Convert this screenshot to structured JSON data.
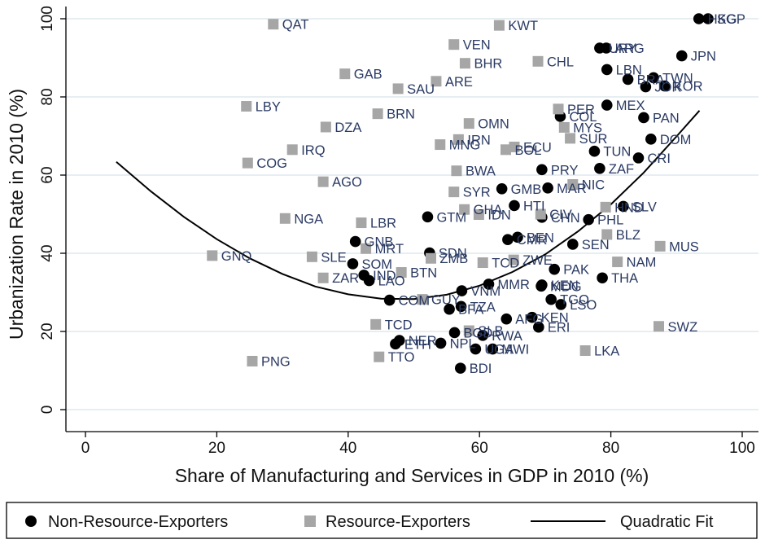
{
  "chart_data": {
    "type": "scatter",
    "title": "",
    "xlabel": "Share of Manufacturing and Services in GDP in 2010 (%)",
    "ylabel": "Urbanization Rate in 2010 (%)",
    "xlim": [
      0,
      100
    ],
    "ylim": [
      0,
      100
    ],
    "xticks": [
      0,
      20,
      40,
      60,
      80,
      100
    ],
    "yticks": [
      0,
      20,
      40,
      60,
      80,
      100
    ],
    "grid": "horizontal",
    "legend": {
      "placement": "bottom",
      "items": [
        {
          "label": "Non-Resource-Exporters",
          "marker": "circle",
          "color": "#000000"
        },
        {
          "label": "Resource-Exporters",
          "marker": "square",
          "color": "#a6a6a6"
        },
        {
          "label": "Quadratic Fit",
          "marker": "line",
          "color": "#000000"
        }
      ]
    },
    "series": [
      {
        "name": "Non-Resource-Exporters",
        "marker": "circle",
        "color": "#000000",
        "points": [
          {
            "label": "HKG",
            "x": 93.4,
            "y": 100
          },
          {
            "label": "SGP",
            "x": 94.8,
            "y": 100
          },
          {
            "label": "URY",
            "x": 78.3,
            "y": 92.5
          },
          {
            "label": "ARG",
            "x": 79.3,
            "y": 92.5
          },
          {
            "label": "JPN",
            "x": 90.8,
            "y": 90.5
          },
          {
            "label": "LBN",
            "x": 79.4,
            "y": 87
          },
          {
            "label": "BRA",
            "x": 82.6,
            "y": 84.5
          },
          {
            "label": "TWN",
            "x": 86.5,
            "y": 84.9
          },
          {
            "label": "JOR",
            "x": 85.3,
            "y": 82.6
          },
          {
            "label": "KOR",
            "x": 88.2,
            "y": 82.8
          },
          {
            "label": "MEX",
            "x": 79.4,
            "y": 77.9
          },
          {
            "label": "PAN",
            "x": 85,
            "y": 74.7
          },
          {
            "label": "COL",
            "x": 72.3,
            "y": 75
          },
          {
            "label": "DOM",
            "x": 86.1,
            "y": 69.2
          },
          {
            "label": "TUN",
            "x": 77.5,
            "y": 66.1
          },
          {
            "label": "CRI",
            "x": 84.2,
            "y": 64.4
          },
          {
            "label": "ZAF",
            "x": 78.3,
            "y": 61.7
          },
          {
            "label": "PRY",
            "x": 69.5,
            "y": 61.4
          },
          {
            "label": "GMB",
            "x": 63.4,
            "y": 56.5
          },
          {
            "label": "MAR",
            "x": 70.4,
            "y": 56.7
          },
          {
            "label": "HTI",
            "x": 65.3,
            "y": 52.2
          },
          {
            "label": "SLV",
            "x": 81.9,
            "y": 52
          },
          {
            "label": "GTM",
            "x": 52.1,
            "y": 49.3
          },
          {
            "label": "CHN",
            "x": 69.5,
            "y": 49.2
          },
          {
            "label": "PHL",
            "x": 76.6,
            "y": 48.6
          },
          {
            "label": "BEN",
            "x": 65.8,
            "y": 44.1
          },
          {
            "label": "CMR",
            "x": 64.3,
            "y": 43.5
          },
          {
            "label": "GNB",
            "x": 41.1,
            "y": 43
          },
          {
            "label": "SEN",
            "x": 74.2,
            "y": 42.3
          },
          {
            "label": "SDN",
            "x": 52.4,
            "y": 40.1
          },
          {
            "label": "SOM",
            "x": 40.7,
            "y": 37.3
          },
          {
            "label": "PAK",
            "x": 71.4,
            "y": 35.9
          },
          {
            "label": "IND",
            "x": 42.4,
            "y": 34.4
          },
          {
            "label": "LAO",
            "x": 43.2,
            "y": 33
          },
          {
            "label": "THA",
            "x": 78.7,
            "y": 33.7
          },
          {
            "label": "MMR",
            "x": 61.4,
            "y": 32.1
          },
          {
            "label": "KEN",
            "x": 69.5,
            "y": 31.9
          },
          {
            "label": "MDG",
            "x": 69.4,
            "y": 31.6
          },
          {
            "label": "VNM",
            "x": 57.3,
            "y": 30.4
          },
          {
            "label": "COM",
            "x": 46.3,
            "y": 28
          },
          {
            "label": "TGO",
            "x": 70.9,
            "y": 28.2
          },
          {
            "label": "LSO",
            "x": 72.4,
            "y": 26.9
          },
          {
            "label": "TZA",
            "x": 57.2,
            "y": 26.4
          },
          {
            "label": "BFA",
            "x": 55.4,
            "y": 25.7
          },
          {
            "label": "AFG",
            "x": 64.1,
            "y": 23.2
          },
          {
            "label": "KEN2",
            "x": 68,
            "y": 23.6
          },
          {
            "label": "ERI",
            "x": 69,
            "y": 21.1
          },
          {
            "label": "NER",
            "x": 47.8,
            "y": 17.7
          },
          {
            "label": "ETH",
            "x": 47.2,
            "y": 16.8
          },
          {
            "label": "NPL",
            "x": 54.1,
            "y": 17
          },
          {
            "label": "UGA",
            "x": 59.4,
            "y": 15.5
          },
          {
            "label": "MWI",
            "x": 62,
            "y": 15.5
          },
          {
            "label": "RWA",
            "x": 60.5,
            "y": 19
          },
          {
            "label": "BGD",
            "x": 56.2,
            "y": 19.7
          },
          {
            "label": "BDI",
            "x": 57.1,
            "y": 10.6
          }
        ]
      },
      {
        "name": "Resource-Exporters",
        "marker": "square",
        "color": "#a6a6a6",
        "points": [
          {
            "label": "QAT",
            "x": 28.6,
            "y": 98.6
          },
          {
            "label": "KWT",
            "x": 63,
            "y": 98.3
          },
          {
            "label": "VEN",
            "x": 56.1,
            "y": 93.4
          },
          {
            "label": "BHR",
            "x": 57.8,
            "y": 88.6
          },
          {
            "label": "CHL",
            "x": 68.9,
            "y": 89.1
          },
          {
            "label": "GAB",
            "x": 39.5,
            "y": 85.9
          },
          {
            "label": "ARE",
            "x": 53.4,
            "y": 84
          },
          {
            "label": "SAU",
            "x": 47.6,
            "y": 82.1
          },
          {
            "label": "LBY",
            "x": 24.5,
            "y": 77.6
          },
          {
            "label": "PER",
            "x": 72,
            "y": 76.9
          },
          {
            "label": "BRN",
            "x": 44.5,
            "y": 75.7
          },
          {
            "label": "OMN",
            "x": 58.4,
            "y": 73.2
          },
          {
            "label": "MYS",
            "x": 72.9,
            "y": 72.2
          },
          {
            "label": "DZA",
            "x": 36.6,
            "y": 72.3
          },
          {
            "label": "SUR",
            "x": 73.8,
            "y": 69.4
          },
          {
            "label": "IRN",
            "x": 56.8,
            "y": 69.1
          },
          {
            "label": "MNG",
            "x": 54,
            "y": 67.8
          },
          {
            "label": "ECU",
            "x": 65.3,
            "y": 67.2
          },
          {
            "label": "BOL",
            "x": 64,
            "y": 66.5
          },
          {
            "label": "IRQ",
            "x": 31.5,
            "y": 66.5
          },
          {
            "label": "COG",
            "x": 24.7,
            "y": 63.1
          },
          {
            "label": "BWA",
            "x": 56.5,
            "y": 61.1
          },
          {
            "label": "AGO",
            "x": 36.2,
            "y": 58.3
          },
          {
            "label": "SYR",
            "x": 56.1,
            "y": 55.7
          },
          {
            "label": "NIC",
            "x": 74.2,
            "y": 57.6
          },
          {
            "label": "GHA",
            "x": 57.7,
            "y": 51.2
          },
          {
            "label": "IDN",
            "x": 59.9,
            "y": 49.9
          },
          {
            "label": "CIV",
            "x": 69.3,
            "y": 50
          },
          {
            "label": "HND",
            "x": 79.2,
            "y": 51.8
          },
          {
            "label": "NGA",
            "x": 30.4,
            "y": 48.9
          },
          {
            "label": "LBR",
            "x": 42,
            "y": 47.8
          },
          {
            "label": "BLZ",
            "x": 79.4,
            "y": 44.8
          },
          {
            "label": "MUS",
            "x": 87.5,
            "y": 41.8
          },
          {
            "label": "MRT",
            "x": 42.7,
            "y": 41.2
          },
          {
            "label": "GNQ",
            "x": 19.3,
            "y": 39.4
          },
          {
            "label": "SLE",
            "x": 34.5,
            "y": 39.1
          },
          {
            "label": "ZMB",
            "x": 52.6,
            "y": 38.7
          },
          {
            "label": "TCD",
            "x": 60.5,
            "y": 37.6
          },
          {
            "label": "ZWE",
            "x": 65.2,
            "y": 38.3
          },
          {
            "label": "NAM",
            "x": 81,
            "y": 37.8
          },
          {
            "label": "ZAR",
            "x": 36.2,
            "y": 33.7
          },
          {
            "label": "BTN",
            "x": 48.1,
            "y": 35.1
          },
          {
            "label": "GUY",
            "x": 51.3,
            "y": 28.2
          },
          {
            "label": "TCD2",
            "x": 44.2,
            "y": 21.8
          },
          {
            "label": "SWZ",
            "x": 87.3,
            "y": 21.3
          },
          {
            "label": "SLB",
            "x": 58.4,
            "y": 20.2
          },
          {
            "label": "TTO",
            "x": 44.7,
            "y": 13.5
          },
          {
            "label": "PNG",
            "x": 25.4,
            "y": 12.4
          },
          {
            "label": "LKA",
            "x": 76.1,
            "y": 15.1
          }
        ]
      }
    ],
    "fit": {
      "name": "Quadratic Fit",
      "x": [
        4.7,
        10,
        15,
        20,
        25,
        30,
        35,
        40,
        45,
        50,
        55,
        60,
        65,
        70,
        75,
        80,
        85,
        90,
        93.5
      ],
      "y": [
        63.4,
        55.8,
        49.3,
        43.6,
        38.7,
        34.7,
        31.5,
        29.5,
        28.4,
        28.3,
        29.4,
        31.7,
        35.2,
        39.7,
        45.6,
        52.5,
        60.6,
        69.9,
        76.5
      ]
    }
  },
  "fit_label_display": "Quadratic Fit",
  "display_labels": {
    "HKG": "HKG",
    "SGP": "SGP",
    "KEN2": "KEN",
    "TCD2": "TCD"
  }
}
